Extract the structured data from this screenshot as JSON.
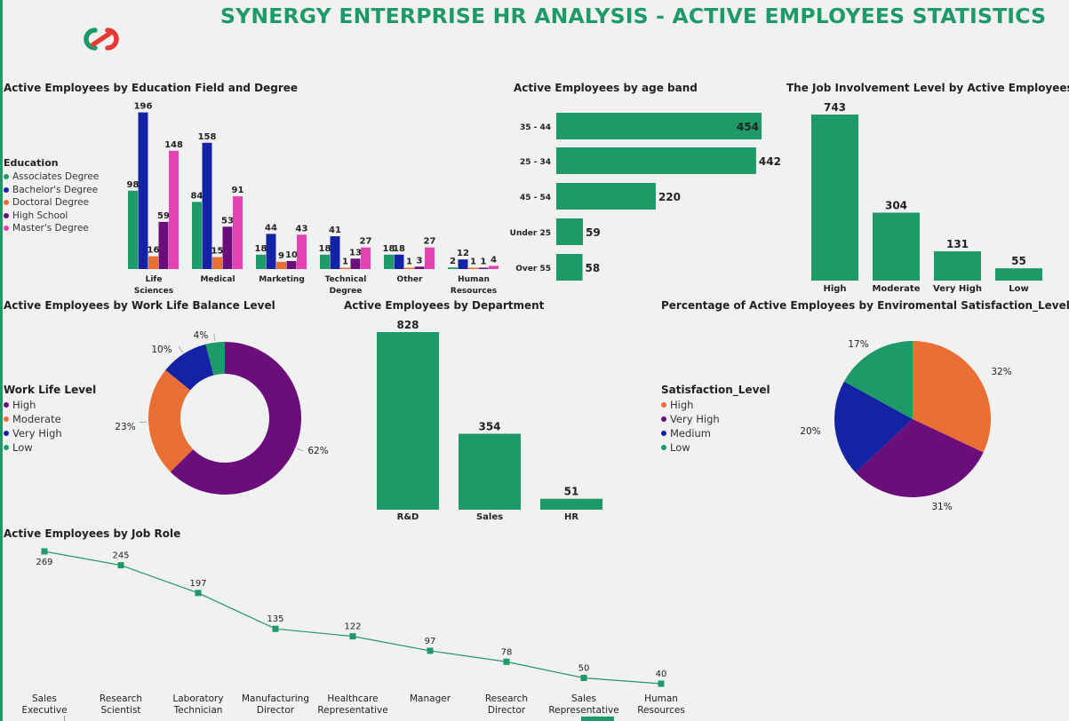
{
  "page_title": "SYNERGY ENTERPRISE HR ANALYSIS - ACTIVE EMPLOYEES STATISTICS",
  "logo": {
    "colors": [
      "#1e9968",
      "#e53935"
    ],
    "icon": "infinity-link-icon"
  },
  "colors": {
    "green": "#1e9968",
    "navy": "#1423a3",
    "orange": "#ea6f35",
    "purple": "#6b0d7a",
    "pink": "#e242b3"
  },
  "chart_data": [
    {
      "id": "education",
      "type": "bar",
      "title": "Active Employees by Education Field and Degree",
      "legend_title": "Education",
      "categories": [
        "Life Sciences",
        "Medical",
        "Marketing",
        "Technical Degree",
        "Other",
        "Human Resources"
      ],
      "series": [
        {
          "name": "Associates Degree",
          "color": "#1e9968",
          "values": [
            98,
            84,
            18,
            18,
            18,
            2
          ]
        },
        {
          "name": "Bachelor's Degree",
          "color": "#1423a3",
          "values": [
            196,
            158,
            44,
            41,
            18,
            12
          ]
        },
        {
          "name": "Doctoral Degree",
          "color": "#ea6f35",
          "values": [
            16,
            15,
            9,
            1,
            1,
            1
          ]
        },
        {
          "name": "High School",
          "color": "#6b0d7a",
          "values": [
            59,
            53,
            10,
            13,
            3,
            1
          ]
        },
        {
          "name": "Master's Degree",
          "color": "#e242b3",
          "values": [
            148,
            91,
            43,
            27,
            27,
            4
          ]
        }
      ]
    },
    {
      "id": "age",
      "type": "bar",
      "orientation": "horizontal",
      "title": "Active Employees by age band",
      "categories": [
        "35 - 44",
        "25 - 34",
        "45 - 54",
        "Under 25",
        "Over 55"
      ],
      "values": [
        454,
        442,
        220,
        59,
        58
      ]
    },
    {
      "id": "involvement",
      "type": "bar",
      "title": "The Job Involvement Level by Active Employees",
      "categories": [
        "High",
        "Moderate",
        "Very High",
        "Low"
      ],
      "values": [
        743,
        304,
        131,
        55
      ]
    },
    {
      "id": "worklife",
      "type": "pie",
      "variant": "donut",
      "title": "Active Employees by Work Life Balance Level",
      "legend_title": "Work Life Level",
      "categories": [
        "High",
        "Moderate",
        "Very High",
        "Low"
      ],
      "values": [
        62,
        23,
        10,
        4
      ],
      "labels": [
        "62%",
        "23%",
        "10%",
        "4%"
      ],
      "colors": [
        "#6b0d7a",
        "#ea6f35",
        "#1423a3",
        "#1e9968"
      ]
    },
    {
      "id": "department",
      "type": "bar",
      "title": "Active Employees by Department",
      "categories": [
        "R&D",
        "Sales",
        "HR"
      ],
      "values": [
        828,
        354,
        51
      ]
    },
    {
      "id": "satisfaction",
      "type": "pie",
      "title": "Percentage of Active Employees by Enviromental Satisfaction_Level",
      "legend_title": "Satisfaction_Level",
      "categories": [
        "High",
        "Very High",
        "Medium",
        "Low"
      ],
      "values": [
        32,
        31,
        20,
        17
      ],
      "labels": [
        "32%",
        "31%",
        "20%",
        "17%"
      ],
      "colors": [
        "#ea6f35",
        "#6b0d7a",
        "#1423a3",
        "#1e9968"
      ]
    },
    {
      "id": "jobrole",
      "type": "line",
      "title": "Active Employees by Job Role",
      "categories": [
        "Sales Executive",
        "Research Scientist",
        "Laboratory Technician",
        "Manufacturing Director",
        "Healthcare Representative",
        "Manager",
        "Research Director",
        "Sales Representative",
        "Human Resources"
      ],
      "values": [
        269,
        245,
        197,
        135,
        122,
        97,
        78,
        50,
        40
      ]
    }
  ]
}
